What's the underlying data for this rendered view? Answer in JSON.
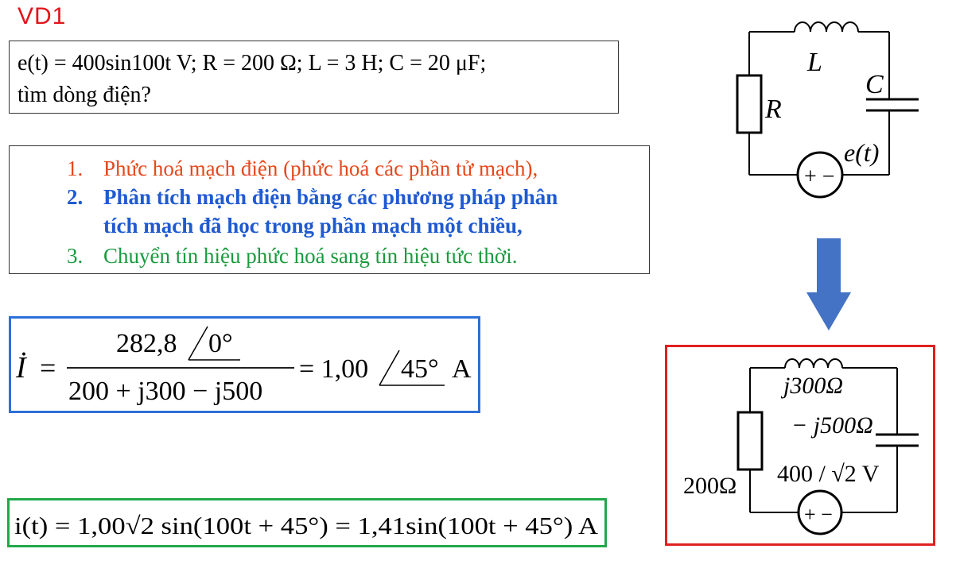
{
  "title": "VD1",
  "given": {
    "line1": "e(t) = 400sin100t V; R = 200 Ω; L = 3 H; C = 20 μF;",
    "line2": "tìm dòng điện?"
  },
  "steps": [
    {
      "num": "1.",
      "text": "Phức hoá mạch điện (phức hoá các phần tử mạch),"
    },
    {
      "num": "2.",
      "text": "Phân tích mạch điện bằng các phương pháp phân",
      "text_cont": "tích mạch đã học trong phần mạch một chiều,"
    },
    {
      "num": "3.",
      "text": "Chuyển tín hiệu phức hoá sang tín hiệu tức thời."
    }
  ],
  "equation1": {
    "lhs": "İ",
    "eq": "=",
    "num_value": "282,8",
    "num_angle": "0°",
    "denominator": "200 + j300 − j500",
    "result": "= 1,00",
    "result_angle": "45°",
    "unit": "A"
  },
  "equation2": {
    "text": "i(t) = 1,00√2 sin(100t + 45°) = 1,41sin(100t + 45°) A"
  },
  "circuit1": {
    "L": "L",
    "C": "C",
    "R": "R",
    "source": "e(t)",
    "source_sign": "+ −"
  },
  "circuit2": {
    "ZL": "j300Ω",
    "ZC": "− j500Ω",
    "R": "200Ω",
    "E": "400 / √2 V",
    "source_sign": "+ −"
  },
  "colors": {
    "title": "#e3141a",
    "step1": "#e5481d",
    "step2": "#1f5ad1",
    "step3": "#1a9a3e",
    "box_blue": "#2e6fd9",
    "box_green": "#22a84a",
    "box_red": "#e02020",
    "arrow": "#4472c4"
  }
}
